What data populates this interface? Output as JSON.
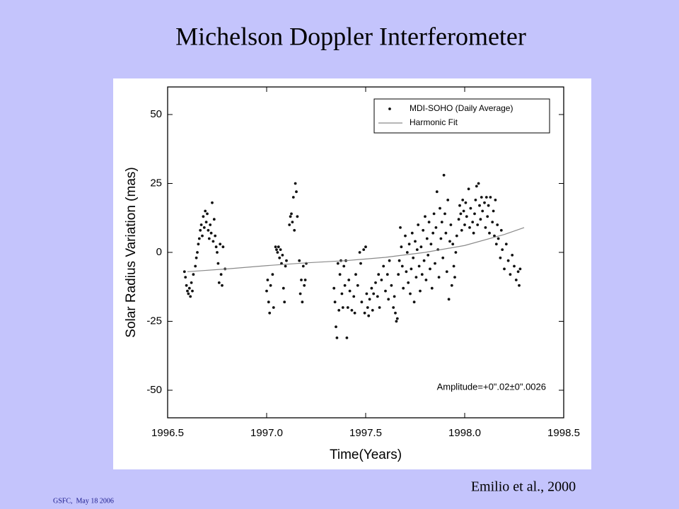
{
  "slide": {
    "title": "Michelson Doppler Interferometer",
    "citation": "Emilio et al., 2000",
    "footer": "GSFC,  May 18 2006"
  },
  "chart_data": {
    "type": "scatter",
    "xlabel": "Time(Years)",
    "ylabel": "Solar Radius Variation (mas)",
    "annotation": "Amplitude=+0\".02±0\".0026",
    "xlim": [
      1996.5,
      1998.5
    ],
    "ylim": [
      -60,
      60
    ],
    "xticks": [
      1996.5,
      {
        "value": 1997,
        "label": "1997.0"
      },
      1997.5,
      {
        "value": 1998,
        "label": "1998.0"
      },
      1998.5
    ],
    "yticks": [
      -50,
      -25,
      0,
      25,
      50
    ],
    "grid": false,
    "legend": "upper right",
    "series": [
      {
        "name": "MDI-SOHO (Daily Average)",
        "color": "#111111",
        "mode": "markers",
        "x": [
          1996.585,
          1996.59,
          1996.595,
          1996.6,
          1996.605,
          1996.61,
          1996.615,
          1996.62,
          1996.625,
          1996.63,
          1996.64,
          1996.645,
          1996.65,
          1996.655,
          1996.66,
          1996.665,
          1996.67,
          1996.675,
          1996.68,
          1996.685,
          1996.69,
          1996.695,
          1996.7,
          1996.705,
          1996.71,
          1996.715,
          1996.72,
          1996.725,
          1996.73,
          1996.735,
          1996.74,
          1996.745,
          1996.75,
          1996.755,
          1996.76,
          1996.765,
          1996.77,
          1996.775,
          1996.78,
          1996.79,
          1997,
          1997.005,
          1997.01,
          1997.015,
          1997.02,
          1997.03,
          1997.035,
          1997.045,
          1997.05,
          1997.055,
          1997.06,
          1997.065,
          1997.07,
          1997.075,
          1997.08,
          1997.085,
          1997.09,
          1997.095,
          1997.1,
          1997.115,
          1997.12,
          1997.125,
          1997.13,
          1997.135,
          1997.14,
          1997.145,
          1997.15,
          1997.155,
          1997.165,
          1997.17,
          1997.175,
          1997.18,
          1997.185,
          1997.19,
          1997.195,
          1997.2,
          1997.34,
          1997.345,
          1997.35,
          1997.355,
          1997.36,
          1997.365,
          1997.37,
          1997.375,
          1997.38,
          1997.385,
          1997.39,
          1997.395,
          1997.4,
          1997.405,
          1997.41,
          1997.415,
          1997.42,
          1997.43,
          1997.44,
          1997.445,
          1997.45,
          1997.46,
          1997.47,
          1997.475,
          1997.48,
          1997.49,
          1997.495,
          1997.5,
          1997.505,
          1997.51,
          1997.515,
          1997.52,
          1997.53,
          1997.535,
          1997.54,
          1997.55,
          1997.56,
          1997.565,
          1997.57,
          1997.58,
          1997.59,
          1997.6,
          1997.61,
          1997.615,
          1997.62,
          1997.63,
          1997.64,
          1997.645,
          1997.65,
          1997.655,
          1997.66,
          1997.665,
          1997.67,
          1997.675,
          1997.68,
          1997.685,
          1997.69,
          1997.7,
          1997.705,
          1997.71,
          1997.715,
          1997.72,
          1997.725,
          1997.73,
          1997.735,
          1997.74,
          1997.745,
          1997.75,
          1997.755,
          1997.76,
          1997.765,
          1997.77,
          1997.775,
          1997.78,
          1997.785,
          1997.79,
          1997.795,
          1997.8,
          1997.805,
          1997.81,
          1997.815,
          1997.82,
          1997.825,
          1997.83,
          1997.835,
          1997.84,
          1997.845,
          1997.85,
          1997.855,
          1997.86,
          1997.865,
          1997.87,
          1997.875,
          1997.88,
          1997.885,
          1997.89,
          1997.895,
          1997.9,
          1997.905,
          1997.91,
          1997.915,
          1997.92,
          1997.925,
          1997.93,
          1997.935,
          1997.94,
          1997.945,
          1997.95,
          1997.955,
          1997.96,
          1997.97,
          1997.975,
          1997.98,
          1997.985,
          1997.99,
          1997.995,
          1998,
          1998.005,
          1998.01,
          1998.02,
          1998.025,
          1998.03,
          1998.04,
          1998.045,
          1998.05,
          1998.055,
          1998.06,
          1998.065,
          1998.07,
          1998.075,
          1998.08,
          1998.085,
          1998.09,
          1998.1,
          1998.105,
          1998.11,
          1998.115,
          1998.12,
          1998.125,
          1998.13,
          1998.14,
          1998.145,
          1998.15,
          1998.155,
          1998.16,
          1998.165,
          1998.17,
          1998.18,
          1998.185,
          1998.19,
          1998.2,
          1998.21,
          1998.22,
          1998.23,
          1998.24,
          1998.25,
          1998.26,
          1998.27,
          1998.275,
          1998.28
        ],
        "values": [
          -7,
          -9,
          -12,
          -14,
          -15,
          -13,
          -16,
          -11,
          -14,
          -8,
          -5,
          -2,
          0,
          3,
          5,
          8,
          10,
          6,
          13,
          9,
          15,
          11,
          14,
          8,
          5,
          10,
          7,
          18,
          4,
          12,
          6,
          2,
          0,
          -4,
          -11,
          3,
          -8,
          -12,
          2,
          -6,
          -14,
          -10,
          -18,
          -22,
          -12,
          -8,
          -20,
          2,
          1,
          0,
          2,
          -2,
          1,
          -4,
          -1,
          -13,
          -18,
          -5,
          -3,
          10,
          13,
          14,
          11,
          20,
          8,
          25,
          22,
          13,
          -3,
          -15,
          -10,
          -18,
          -5,
          -12,
          -10,
          -4,
          -13,
          -18,
          -27,
          -31,
          -4,
          -21,
          -8,
          -3,
          -15,
          -20,
          -5,
          -12,
          -3,
          -31,
          -20,
          -10,
          -14,
          -21,
          -16,
          -22,
          -8,
          -12,
          0,
          -4,
          -18,
          1,
          -22,
          2,
          -15,
          -20,
          -23,
          -17,
          -13,
          -21,
          -15,
          -11,
          -16,
          -8,
          -20,
          -10,
          -5,
          -14,
          -8,
          -17,
          -3,
          -12,
          -20,
          -16,
          -22,
          -25,
          -24,
          -8,
          -3,
          9,
          2,
          -5,
          -13,
          6,
          -7,
          0,
          -11,
          3,
          -15,
          -6,
          7,
          -2,
          -18,
          4,
          -9,
          1,
          10,
          -5,
          -14,
          2,
          -8,
          8,
          -3,
          13,
          -10,
          5,
          -1,
          11,
          -6,
          3,
          -13,
          7,
          14,
          -4,
          9,
          22,
          1,
          -9,
          16,
          5,
          11,
          -2,
          28,
          14,
          7,
          -7,
          19,
          -17,
          4,
          10,
          -12,
          3,
          -5,
          -9,
          0,
          6,
          12,
          17,
          14,
          8,
          19,
          15,
          10,
          18,
          13,
          23,
          9,
          16,
          11,
          7,
          14,
          19,
          24,
          10,
          25,
          17,
          12,
          20,
          15,
          18,
          9,
          20,
          13,
          17,
          7,
          20,
          11,
          15,
          6,
          19,
          3,
          10,
          5,
          -2,
          8,
          1,
          -6,
          3,
          -3,
          -8,
          -1,
          -5,
          -10,
          -7,
          -12,
          -6
        ]
      },
      {
        "name": "Harmonic Fit",
        "color": "#8a8a8a",
        "mode": "lines",
        "x": [
          1996.6,
          1996.8,
          1997,
          1997.2,
          1997.4,
          1997.6,
          1997.8,
          1998,
          1998.2,
          1998.3
        ],
        "values": [
          -7,
          -6,
          -4.8,
          -3.8,
          -3,
          -1.8,
          0,
          2.5,
          6.5,
          9
        ]
      }
    ]
  }
}
